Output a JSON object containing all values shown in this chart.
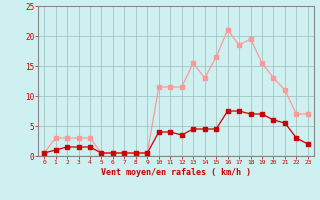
{
  "hours": [
    0,
    1,
    2,
    3,
    4,
    5,
    6,
    7,
    8,
    9,
    10,
    11,
    12,
    13,
    14,
    15,
    16,
    17,
    18,
    19,
    20,
    21,
    22,
    23
  ],
  "wind_avg": [
    0.5,
    1.0,
    1.5,
    1.5,
    1.5,
    0.5,
    0.5,
    0.5,
    0.5,
    0.5,
    4.0,
    4.0,
    3.5,
    4.5,
    4.5,
    4.5,
    7.5,
    7.5,
    7.0,
    7.0,
    6.0,
    5.5,
    3.0,
    2.0
  ],
  "wind_gust": [
    0.5,
    3.0,
    3.0,
    3.0,
    3.0,
    0.5,
    0.5,
    0.5,
    0.5,
    0.5,
    11.5,
    11.5,
    11.5,
    15.5,
    13.0,
    16.5,
    21.0,
    18.5,
    19.5,
    15.5,
    13.0,
    11.0,
    7.0,
    7.0
  ],
  "ylim": [
    0,
    25
  ],
  "yticks": [
    0,
    5,
    10,
    15,
    20,
    25
  ],
  "xlabel": "Vent moyen/en rafales ( km/h )",
  "bg_color": "#cff0f0",
  "line_color_avg": "#cc0000",
  "line_color_gust": "#ff9999",
  "grid_color": "#99bbbb",
  "xlabel_color": "#cc0000",
  "tick_color": "#cc0000",
  "spine_color": "#888888"
}
